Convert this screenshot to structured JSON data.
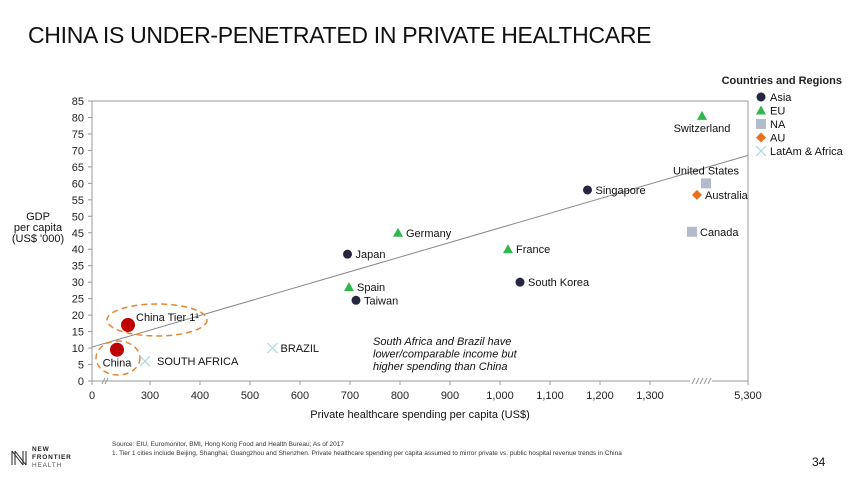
{
  "page": {
    "title": "CHINA IS UNDER-PENETRATED IN PRIVATE HEALTHCARE",
    "page_number": "34"
  },
  "footer": {
    "source": "Source: EIU, Euromonitor, BMI, Hong Kong Food and Health Bureau; As of 2017",
    "note": "1. Tier 1 cities include Beijing, Shanghai, Guangzhou and Shenzhen. Private healthcare spending per capita assumed to mirror private vs. public hospital revenue trends in China"
  },
  "logo": {
    "line1": "NEW",
    "line2": "FRONTIER",
    "line3": "HEALTH"
  },
  "chart_data": {
    "type": "scatter",
    "title": "",
    "xlabel": "Private healthcare spending per capita (US$)",
    "ylabel": [
      "GDP",
      "per capita",
      "(US$ '000)"
    ],
    "ylim": [
      0,
      85
    ],
    "yticks": [
      0,
      5,
      10,
      15,
      20,
      25,
      30,
      35,
      40,
      45,
      50,
      55,
      60,
      65,
      70,
      75,
      80,
      85
    ],
    "xticks": [
      {
        "value": 0,
        "label": "0"
      },
      {
        "value": 300,
        "label": "300"
      },
      {
        "value": 400,
        "label": "400"
      },
      {
        "value": 500,
        "label": "500"
      },
      {
        "value": 600,
        "label": "600"
      },
      {
        "value": 700,
        "label": "700"
      },
      {
        "value": 800,
        "label": "800"
      },
      {
        "value": 900,
        "label": "900"
      },
      {
        "value": 1000,
        "label": "1,000"
      },
      {
        "value": 1100,
        "label": "1,100"
      },
      {
        "value": 1200,
        "label": "1,200"
      },
      {
        "value": 1300,
        "label": "1,300"
      },
      {
        "value": 5300,
        "label": "5,300"
      }
    ],
    "axis_breaks": [
      [
        0,
        250
      ],
      [
        1380,
        5250
      ]
    ],
    "grid": false,
    "legend": {
      "title": "Countries and Regions",
      "position": "top-right",
      "entries": [
        {
          "name": "Asia",
          "marker": "circle",
          "color": "#262640"
        },
        {
          "name": "EU",
          "marker": "triangle",
          "color": "#2eb84a"
        },
        {
          "name": "NA",
          "marker": "square",
          "color": "#b4bccb"
        },
        {
          "name": "AU",
          "marker": "diamond",
          "color": "#e8701e"
        },
        {
          "name": "LatAm & Africa",
          "marker": "x",
          "color": "#b0dbe2"
        }
      ]
    },
    "series": [
      {
        "name": "Asia",
        "points": [
          {
            "label": "Japan",
            "x": 695,
            "y": 38.5
          },
          {
            "label": "Taiwan",
            "x": 712,
            "y": 24.5
          },
          {
            "label": "South Korea",
            "x": 1040,
            "y": 30
          },
          {
            "label": "Singapore",
            "x": 1175,
            "y": 58
          }
        ]
      },
      {
        "name": "EU",
        "points": [
          {
            "label": "Germany",
            "x": 796,
            "y": 45
          },
          {
            "label": "Spain",
            "x": 698,
            "y": 28.5
          },
          {
            "label": "France",
            "x": 1016,
            "y": 40
          },
          {
            "label": "Switzerland",
            "x": 5000,
            "y": 80.5
          }
        ]
      },
      {
        "name": "NA",
        "points": [
          {
            "label": "United States",
            "x": 5050,
            "y": 60
          },
          {
            "label": "Canada",
            "x": 4900,
            "y": 45.3
          }
        ]
      },
      {
        "name": "AU",
        "points": [
          {
            "label": "Australia",
            "x": 4950,
            "y": 56.5
          }
        ]
      },
      {
        "name": "LatAm & Africa",
        "points": [
          {
            "label": "SOUTH AFRICA",
            "x": 290,
            "y": 6
          },
          {
            "label": "BRAZIL",
            "x": 545,
            "y": 10
          }
        ]
      },
      {
        "name": "China",
        "color": "#c00000",
        "points": [
          {
            "label": "China",
            "x": 215,
            "y": 9.5
          },
          {
            "label": "China Tier 1¹",
            "x": 272,
            "y": 17
          }
        ]
      }
    ],
    "trendline": {
      "from": {
        "x": 0,
        "y": 10.3
      },
      "to": {
        "x": 5300,
        "y": 68.5
      }
    },
    "annotation": [
      "South Africa and Brazil have",
      "lower/comparable income but",
      "higher spending than China"
    ]
  }
}
